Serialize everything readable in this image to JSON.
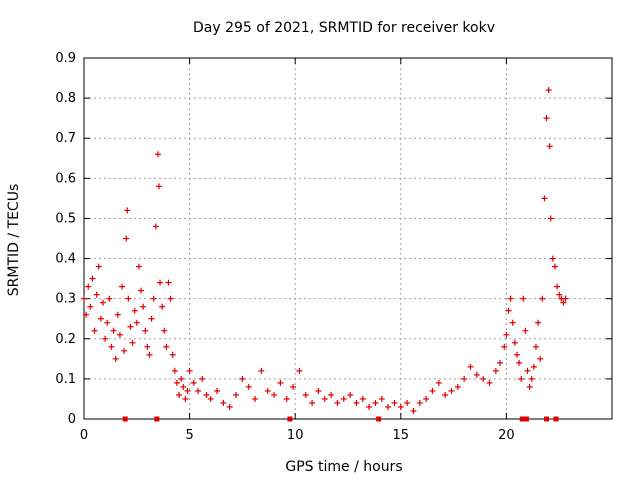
{
  "chart_data": {
    "type": "scatter",
    "title": "Day 295 of 2021, SRMTID for receiver kokv",
    "xlabel": "GPS time / hours",
    "ylabel": "SRMTID / TECUs",
    "xlim": [
      0,
      25
    ],
    "ylim": [
      0,
      0.9
    ],
    "xticks": [
      "0",
      "5",
      "10",
      "15",
      "20"
    ],
    "xtick_values": [
      0,
      5,
      10,
      15,
      20
    ],
    "yticks": [
      "0",
      "0.1",
      "0.2",
      "0.3",
      "0.4",
      "0.5",
      "0.6",
      "0.7",
      "0.8",
      "0.9"
    ],
    "ytick_values": [
      0,
      0.1,
      0.2,
      0.3,
      0.4,
      0.5,
      0.6,
      0.7,
      0.8,
      0.9
    ],
    "grid": true,
    "marker": "+",
    "color": "#e00000",
    "series": [
      {
        "name": "SRMTID",
        "x": [
          0.0,
          0.1,
          0.2,
          0.3,
          0.4,
          0.5,
          0.6,
          0.7,
          0.8,
          0.9,
          1.0,
          1.1,
          1.2,
          1.3,
          1.4,
          1.5,
          1.6,
          1.7,
          1.8,
          1.9,
          2.0,
          2.05,
          2.1,
          2.2,
          2.3,
          2.4,
          2.5,
          2.6,
          2.7,
          2.8,
          2.9,
          3.0,
          3.1,
          3.2,
          3.3,
          3.4,
          3.5,
          3.55,
          3.6,
          3.7,
          3.8,
          3.9,
          4.0,
          4.1,
          4.2,
          4.3,
          4.4,
          4.5,
          4.6,
          4.7,
          4.8,
          4.9,
          5.0,
          5.2,
          5.4,
          5.6,
          5.8,
          6.0,
          6.3,
          6.6,
          6.9,
          7.2,
          7.5,
          7.8,
          8.1,
          8.4,
          8.7,
          9.0,
          9.3,
          9.6,
          9.9,
          10.2,
          10.5,
          10.8,
          11.1,
          11.4,
          11.7,
          12.0,
          12.3,
          12.6,
          12.9,
          13.2,
          13.5,
          13.8,
          14.1,
          14.4,
          14.7,
          15.0,
          15.3,
          15.6,
          15.9,
          16.2,
          16.5,
          16.8,
          17.1,
          17.4,
          17.7,
          18.0,
          18.3,
          18.6,
          18.9,
          19.2,
          19.5,
          19.7,
          19.9,
          20.0,
          20.1,
          20.2,
          20.3,
          20.4,
          20.5,
          20.6,
          20.7,
          20.8,
          20.9,
          21.0,
          21.1,
          21.2,
          21.3,
          21.4,
          21.5,
          21.6,
          21.7,
          21.8,
          21.9,
          22.0,
          22.05,
          22.1,
          22.2,
          22.3,
          22.4,
          22.5,
          22.6,
          22.7,
          22.8
        ],
        "y": [
          0.3,
          0.26,
          0.33,
          0.28,
          0.35,
          0.22,
          0.31,
          0.38,
          0.25,
          0.29,
          0.2,
          0.24,
          0.3,
          0.18,
          0.22,
          0.15,
          0.26,
          0.21,
          0.33,
          0.17,
          0.45,
          0.52,
          0.3,
          0.23,
          0.19,
          0.27,
          0.24,
          0.38,
          0.32,
          0.28,
          0.22,
          0.18,
          0.16,
          0.25,
          0.3,
          0.48,
          0.66,
          0.58,
          0.34,
          0.28,
          0.22,
          0.18,
          0.34,
          0.3,
          0.16,
          0.12,
          0.09,
          0.06,
          0.1,
          0.08,
          0.05,
          0.07,
          0.12,
          0.09,
          0.07,
          0.1,
          0.06,
          0.05,
          0.07,
          0.04,
          0.03,
          0.06,
          0.1,
          0.08,
          0.05,
          0.12,
          0.07,
          0.06,
          0.09,
          0.05,
          0.08,
          0.12,
          0.06,
          0.04,
          0.07,
          0.05,
          0.06,
          0.04,
          0.05,
          0.06,
          0.04,
          0.05,
          0.03,
          0.04,
          0.05,
          0.03,
          0.04,
          0.03,
          0.04,
          0.02,
          0.04,
          0.05,
          0.07,
          0.09,
          0.06,
          0.07,
          0.08,
          0.1,
          0.13,
          0.11,
          0.1,
          0.09,
          0.12,
          0.14,
          0.18,
          0.21,
          0.27,
          0.3,
          0.24,
          0.19,
          0.16,
          0.14,
          0.1,
          0.3,
          0.22,
          0.12,
          0.08,
          0.1,
          0.13,
          0.18,
          0.24,
          0.15,
          0.3,
          0.55,
          0.75,
          0.82,
          0.68,
          0.5,
          0.4,
          0.38,
          0.33,
          0.31,
          0.3,
          0.29,
          0.3
        ]
      }
    ],
    "gaps_x": [
      1.95,
      3.45,
      9.75,
      13.95,
      20.75,
      20.95,
      21.9,
      22.35
    ]
  }
}
